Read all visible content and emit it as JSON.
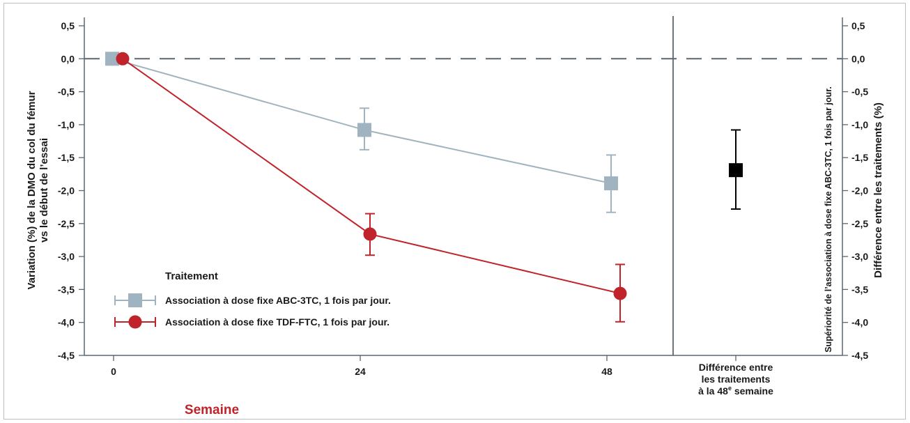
{
  "chart_data": {
    "type": "line",
    "xlabel": "Semaine",
    "ylabel_lines": [
      "Variation (%) de la DMO du col du fémur",
      "vs le début de l’essai"
    ],
    "y2label": "Différence entre les traitements (%)",
    "y2label_inner": "Supériorité de l’association à dose fixe ABC-3TC, 1 fois par jour.",
    "ylim": [
      -4.5,
      0.5
    ],
    "yticks": [
      0.5,
      0.0,
      -0.5,
      -1.0,
      -1.5,
      -2.0,
      -2.5,
      -3.0,
      -3.5,
      -4.0,
      -4.5
    ],
    "ytick_labels": [
      "0,5",
      "0,0",
      "-0,5",
      "-1,0",
      "-1,5",
      "-2,0",
      "-2,5",
      "-3,0",
      "-3,5",
      "-4,0",
      "-4,5"
    ],
    "x": [
      0,
      24,
      48
    ],
    "xtick_labels": [
      "0",
      "24",
      "48"
    ],
    "diff_label_lines": [
      "Différence entre",
      "les traitements",
      "à la 48",
      "e",
      " semaine"
    ],
    "legend_title": "Traitement",
    "series": [
      {
        "name": "Association à dose fixe ABC-3TC, 1 fois par jour.",
        "color": "#9fb4c0",
        "marker": "square",
        "values": [
          0.0,
          -1.08,
          -1.89
        ],
        "err_low": [
          0.0,
          -1.38,
          -2.33
        ],
        "err_high": [
          0.0,
          -0.75,
          -1.46
        ]
      },
      {
        "name": "Association à dose fixe TDF-FTC, 1 fois par jour.",
        "color": "#c0232a",
        "marker": "circle",
        "values": [
          0.0,
          -2.66,
          -3.56
        ],
        "err_low": [
          0.0,
          -2.98,
          -3.99
        ],
        "err_high": [
          0.0,
          -2.35,
          -3.12
        ]
      }
    ],
    "difference": {
      "value": -1.69,
      "err_low": -2.28,
      "err_high": -1.08,
      "color": "#000000"
    },
    "reference_line": 0.0,
    "grid": false
  }
}
